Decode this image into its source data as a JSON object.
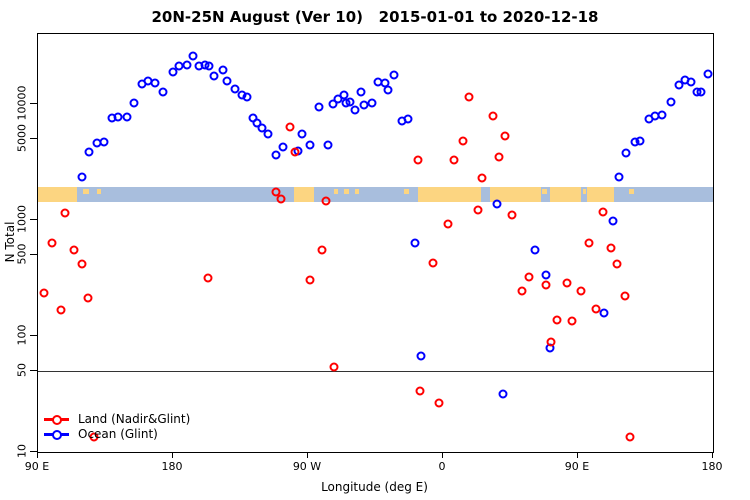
{
  "chart_data": {
    "type": "scatter",
    "title": "20N-25N August (Ver 10)   2015-01-01 to 2020-12-18",
    "xlabel": "Longitude (deg E)",
    "ylabel": "N Total",
    "y_scale": "log",
    "ylim": [
      10,
      39800
    ],
    "x_range_deg": [
      90,
      540
    ],
    "xticks": [
      {
        "t": 90,
        "label": "90 E"
      },
      {
        "t": 180,
        "label": "180"
      },
      {
        "t": 270,
        "label": "90 W"
      },
      {
        "t": 360,
        "label": "0"
      },
      {
        "t": 450,
        "label": "90 E"
      },
      {
        "t": 540,
        "label": "180"
      }
    ],
    "yticks": [
      "10",
      "50",
      "100",
      "500",
      "1000",
      "5000",
      "10000"
    ],
    "threshold_line_value": 50,
    "map_band": {
      "description": "land/ocean strip for 20N-25N latitude",
      "value_range": [
        1430,
        1930
      ],
      "ocean_color": "#a8bedd",
      "land_color": "#fcd581",
      "land_segments_deg": [
        [
          90,
          116
        ],
        [
          260.5,
          274
        ],
        [
          343,
          385.5
        ],
        [
          391,
          425
        ],
        [
          431,
          452
        ],
        [
          456,
          474
        ]
      ],
      "island_dashes_deg": [
        [
          108,
          111
        ],
        [
          120,
          124
        ],
        [
          129,
          132
        ],
        [
          287,
          290
        ],
        [
          294,
          297
        ],
        [
          301,
          304
        ],
        [
          334,
          337
        ],
        [
          426,
          429
        ],
        [
          453,
          455
        ],
        [
          484,
          487
        ]
      ]
    },
    "series": [
      {
        "name": "Land (Nadir&Glint)",
        "color": "#ff0000",
        "points": [
          [
            94,
            235
          ],
          [
            99,
            634
          ],
          [
            105,
            167
          ],
          [
            108,
            1150
          ],
          [
            114,
            554
          ],
          [
            119,
            415
          ],
          [
            123.5,
            213
          ],
          [
            127,
            13.5
          ],
          [
            203,
            316
          ],
          [
            248.5,
            1750
          ],
          [
            252,
            1520
          ],
          [
            258,
            6330
          ],
          [
            261.5,
            3800
          ],
          [
            271.5,
            304
          ],
          [
            279,
            554
          ],
          [
            282,
            1440
          ],
          [
            287,
            54
          ],
          [
            343,
            3270
          ],
          [
            344.5,
            33.8
          ],
          [
            353,
            428
          ],
          [
            357.5,
            26.6
          ],
          [
            363,
            912
          ],
          [
            367,
            3270
          ],
          [
            373,
            4780
          ],
          [
            377.5,
            11300
          ],
          [
            383,
            1220
          ],
          [
            386,
            2270
          ],
          [
            393,
            7890
          ],
          [
            397.5,
            3490
          ],
          [
            401.5,
            5270
          ],
          [
            406,
            1100
          ],
          [
            412.5,
            243
          ],
          [
            417.5,
            323
          ],
          [
            428.5,
            273
          ],
          [
            432,
            88.7
          ],
          [
            436,
            136
          ],
          [
            442.5,
            283
          ],
          [
            446,
            134
          ],
          [
            452,
            243
          ],
          [
            457,
            634
          ],
          [
            462,
            170
          ],
          [
            466.5,
            1160
          ],
          [
            472,
            566
          ],
          [
            476,
            412
          ],
          [
            481,
            220
          ],
          [
            484.5,
            13.4
          ]
        ]
      },
      {
        "name": "Ocean (Glint)",
        "color": "#0000ff",
        "points": [
          [
            119,
            2350
          ],
          [
            124,
            3860
          ],
          [
            129,
            4550
          ],
          [
            134,
            4700
          ],
          [
            139,
            7570
          ],
          [
            143.5,
            7730
          ],
          [
            149,
            7730
          ],
          [
            154,
            10200
          ],
          [
            159,
            14700
          ],
          [
            163.5,
            15700
          ],
          [
            168,
            15000
          ],
          [
            173.5,
            12500
          ],
          [
            180,
            18900
          ],
          [
            184,
            21300
          ],
          [
            189,
            21600
          ],
          [
            193.5,
            25900
          ],
          [
            197,
            21300
          ],
          [
            201,
            21600
          ],
          [
            204,
            21200
          ],
          [
            207.5,
            17300
          ],
          [
            213,
            19500
          ],
          [
            216,
            15800
          ],
          [
            221,
            13400
          ],
          [
            226,
            11900
          ],
          [
            229.5,
            11300
          ],
          [
            233,
            7570
          ],
          [
            236,
            6760
          ],
          [
            239,
            6130
          ],
          [
            243,
            5440
          ],
          [
            248.5,
            3620
          ],
          [
            253,
            4260
          ],
          [
            263.5,
            3910
          ],
          [
            266,
            5440
          ],
          [
            271.5,
            4400
          ],
          [
            277.5,
            9420
          ],
          [
            283,
            4370
          ],
          [
            286.5,
            9890
          ],
          [
            290,
            11000
          ],
          [
            294,
            11900
          ],
          [
            295,
            10100
          ],
          [
            298,
            10400
          ],
          [
            301.5,
            8830
          ],
          [
            305,
            12500
          ],
          [
            307,
            9770
          ],
          [
            312.5,
            10100
          ],
          [
            316.5,
            15500
          ],
          [
            321.5,
            15200
          ],
          [
            323,
            13100
          ],
          [
            327,
            17700
          ],
          [
            332.5,
            7100
          ],
          [
            336.5,
            7380
          ],
          [
            341,
            634
          ],
          [
            345,
            67
          ],
          [
            396,
            1360
          ],
          [
            400,
            31.4
          ],
          [
            421.5,
            554
          ],
          [
            428.5,
            333
          ],
          [
            431,
            79
          ],
          [
            467.5,
            158
          ],
          [
            473,
            980
          ],
          [
            477,
            2350
          ],
          [
            482,
            3780
          ],
          [
            488,
            4700
          ],
          [
            491.5,
            4760
          ],
          [
            497,
            7380
          ],
          [
            501.5,
            7880
          ],
          [
            506,
            8000
          ],
          [
            512,
            10400
          ],
          [
            517,
            14500
          ],
          [
            521.5,
            16000
          ],
          [
            525.5,
            15300
          ],
          [
            529,
            12500
          ],
          [
            532,
            12500
          ],
          [
            536.5,
            18000
          ]
        ]
      }
    ],
    "legend": {
      "position": "bottom-left-inside",
      "entries": [
        "Land (Nadir&Glint)",
        "Ocean (Glint)"
      ]
    }
  }
}
